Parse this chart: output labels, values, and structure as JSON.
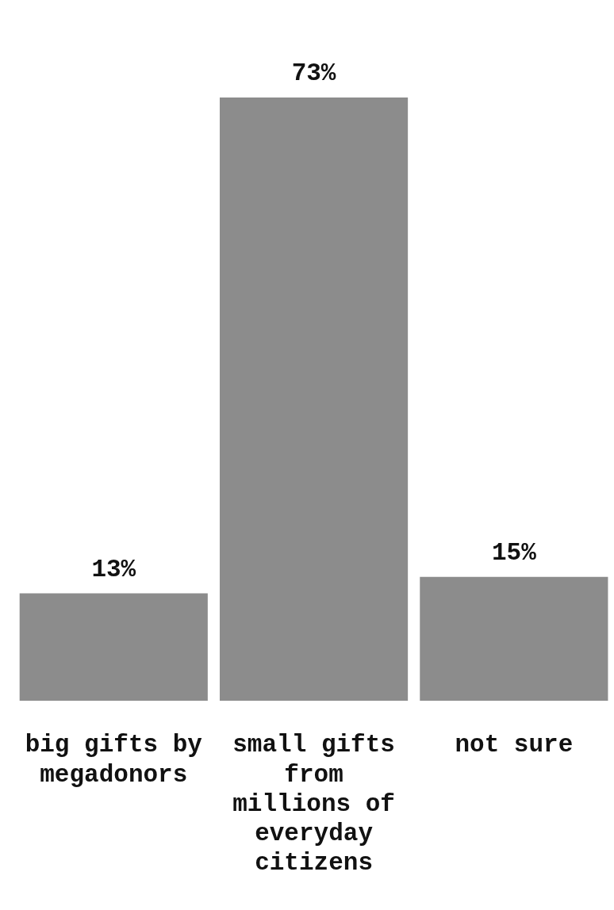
{
  "chart_data": {
    "type": "bar",
    "categories": [
      "big gifts by megadonors",
      "small gifts from millions of everyday citizens",
      "not sure"
    ],
    "values": [
      13,
      73,
      15
    ],
    "color": "#8c8c8c",
    "value_labels": [
      "13%",
      "73%",
      "15%"
    ],
    "grid": false,
    "legend": false
  }
}
